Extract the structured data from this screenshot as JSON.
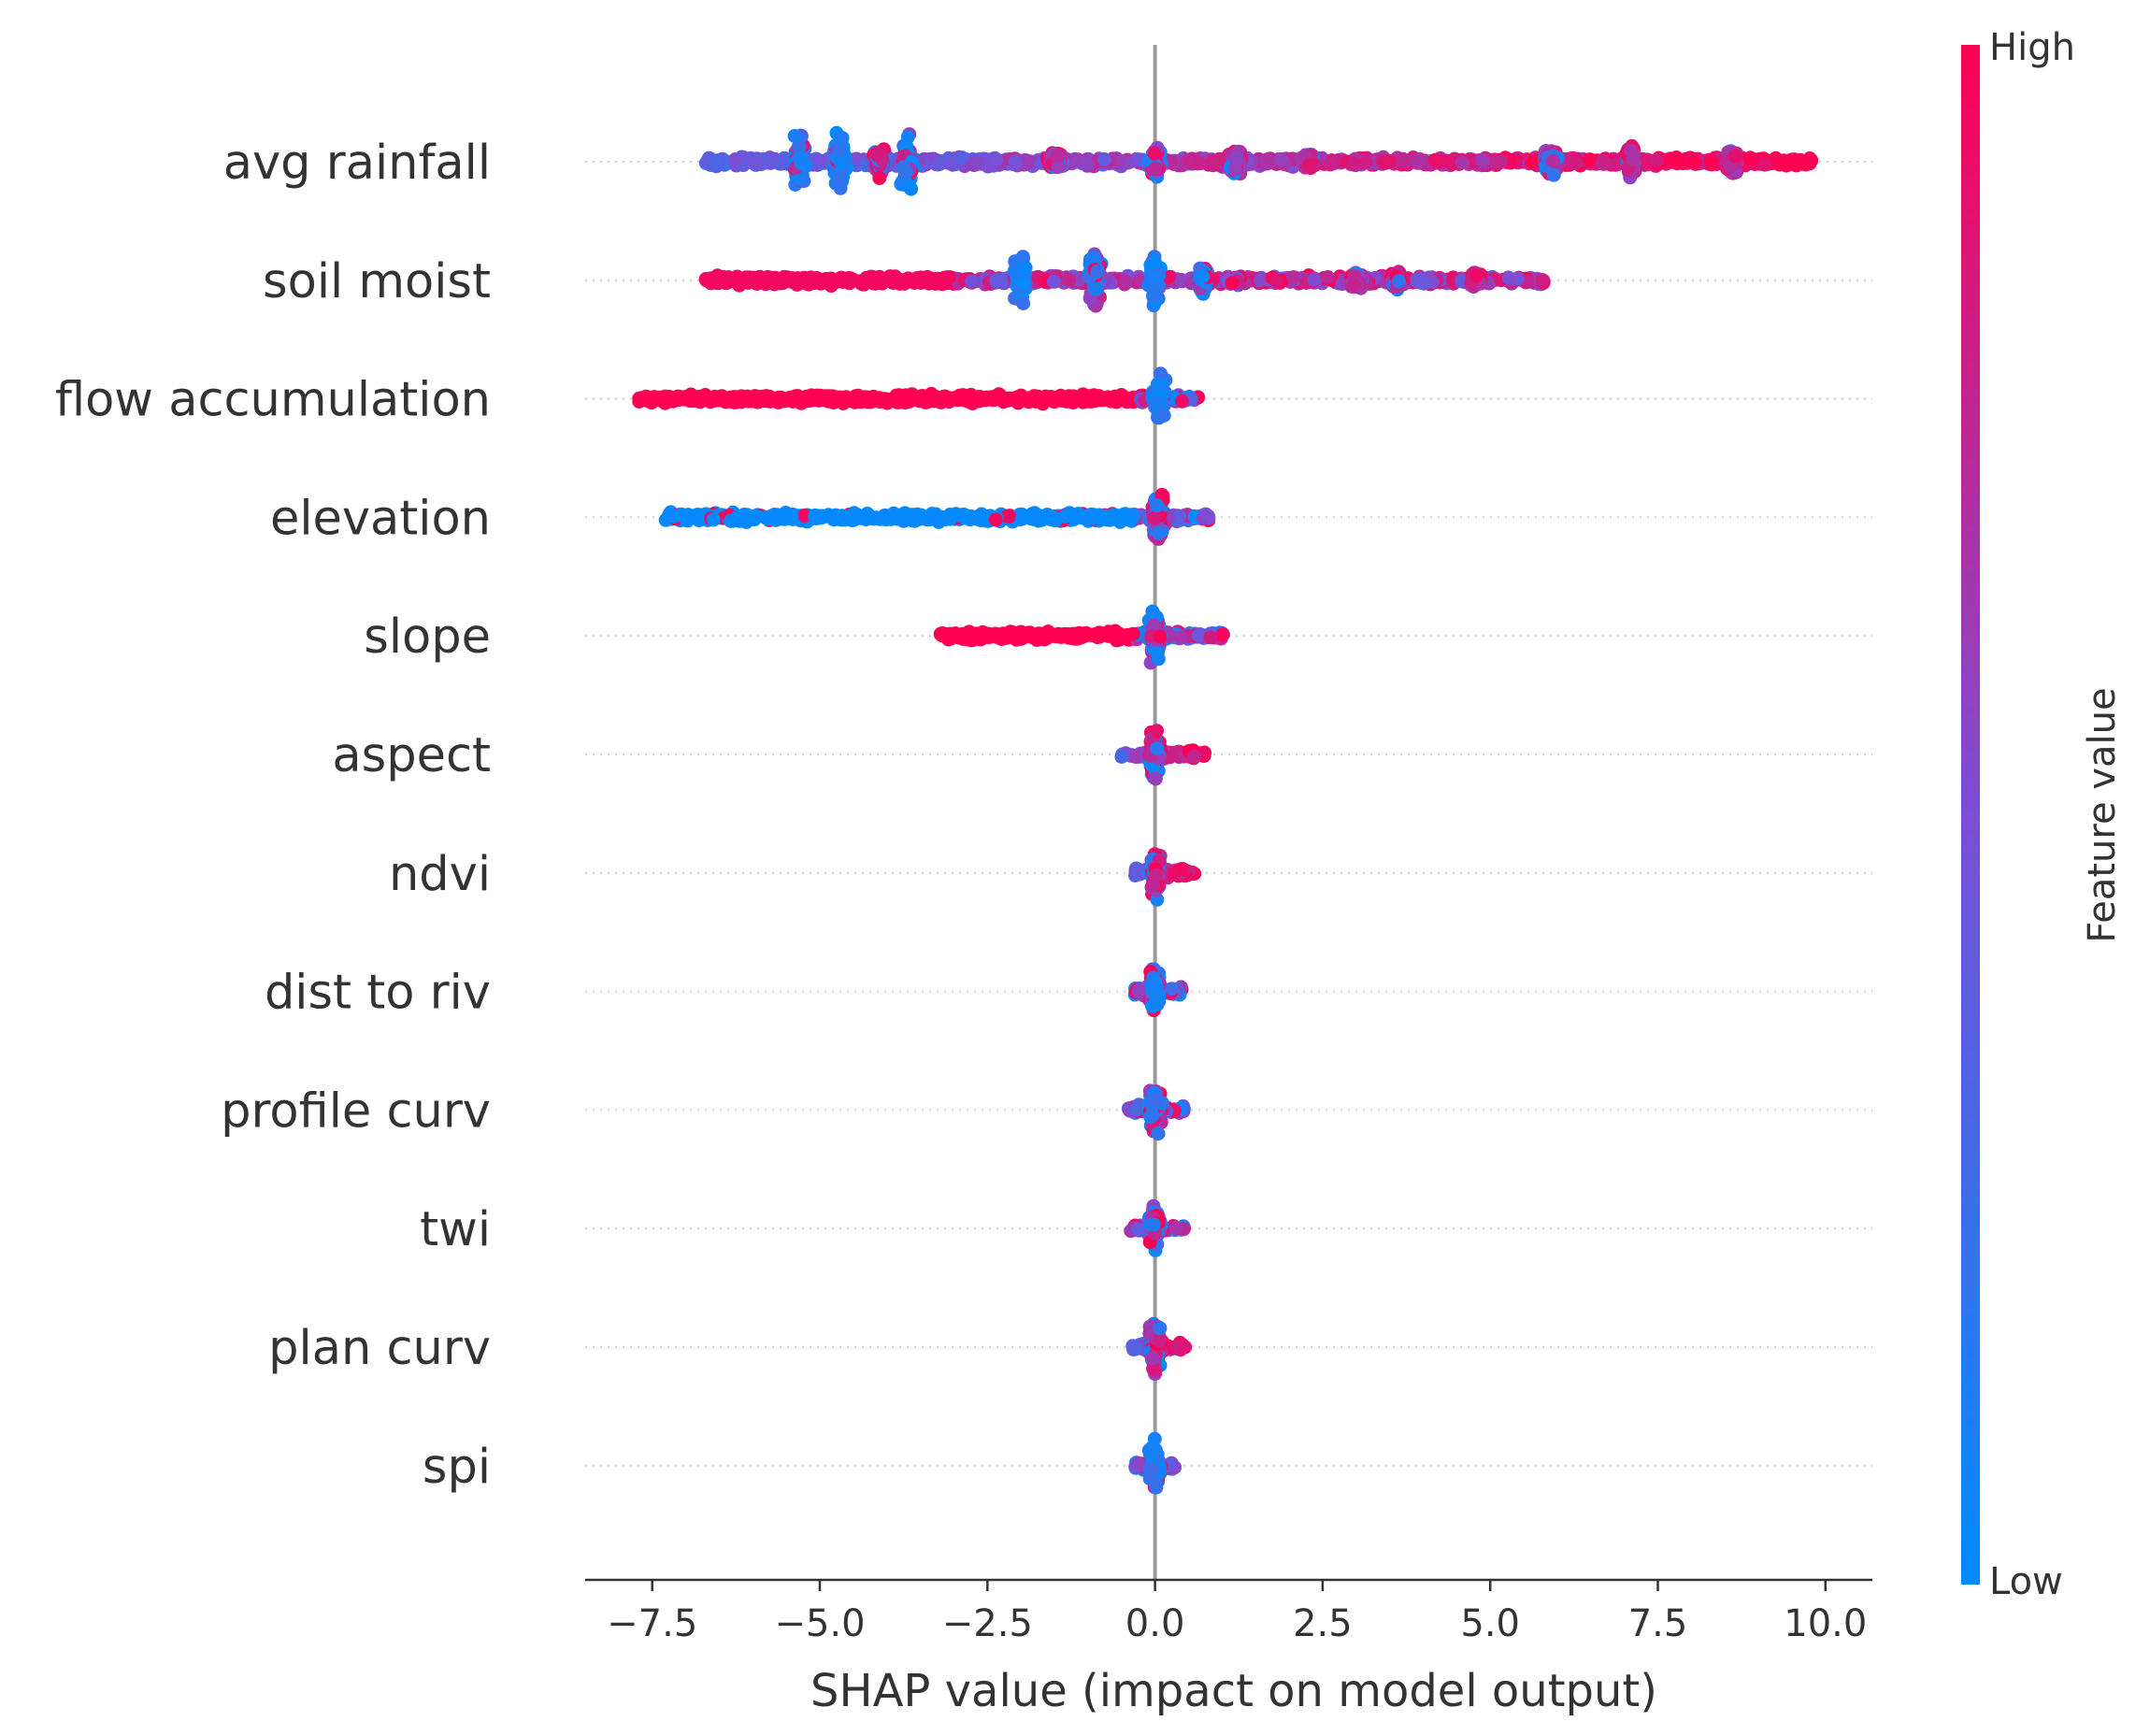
{
  "chart_data": {
    "type": "scatter",
    "subtype": "shap-beeswarm",
    "title": "",
    "xlabel": "SHAP value (impact on model output)",
    "ylabel": "",
    "xlim": [
      -8.5,
      10.7
    ],
    "xticks": [
      -7.5,
      -5.0,
      -2.5,
      0.0,
      2.5,
      5.0,
      7.5,
      10.0
    ],
    "xtick_labels": [
      "−7.5",
      "−5.0",
      "−2.5",
      "0.0",
      "2.5",
      "5.0",
      "7.5",
      "10.0"
    ],
    "zero_line": 0.0,
    "grid": false,
    "colors": {
      "low": "#008bfb",
      "high": "#ff0052",
      "zero_line": "#999999",
      "dotted_guides": "#cccccc"
    },
    "colorbar": {
      "title": "Feature value",
      "low_label": "Low",
      "high_label": "High"
    },
    "features": [
      {
        "name": "avg rainfall",
        "shap_min": -6.7,
        "shap_max": 9.8,
        "clusters": [
          {
            "x": -5.3,
            "spread": 0.9,
            "low_frac": 0.9
          },
          {
            "x": -4.7,
            "spread": 0.9,
            "low_frac": 0.85
          },
          {
            "x": -4.1,
            "spread": 0.6,
            "low_frac": 0.6
          },
          {
            "x": -3.7,
            "spread": 0.8,
            "low_frac": 0.8
          },
          {
            "x": -1.5,
            "spread": 0.3,
            "low_frac": 0.1
          },
          {
            "x": 0.0,
            "spread": 0.45,
            "low_frac": 0.5
          },
          {
            "x": 1.2,
            "spread": 0.4,
            "low_frac": 0.15
          },
          {
            "x": 2.3,
            "spread": 0.3,
            "low_frac": 0.1
          },
          {
            "x": 5.9,
            "spread": 0.45,
            "low_frac": 0.4
          },
          {
            "x": 7.1,
            "spread": 0.6,
            "low_frac": 0.05
          },
          {
            "x": 8.6,
            "spread": 0.45,
            "low_frac": 0.05
          }
        ],
        "trend": "high"
      },
      {
        "name": "soil moist",
        "shap_min": -6.7,
        "shap_max": 5.8,
        "clusters": [
          {
            "x": -2.0,
            "spread": 0.8,
            "low_frac": 0.95
          },
          {
            "x": -0.9,
            "spread": 0.9,
            "low_frac": 0.6
          },
          {
            "x": 0.0,
            "spread": 0.8,
            "low_frac": 0.8
          },
          {
            "x": 0.7,
            "spread": 0.45,
            "low_frac": 0.5
          },
          {
            "x": 3.0,
            "spread": 0.3,
            "low_frac": 0.2
          },
          {
            "x": 3.6,
            "spread": 0.3,
            "low_frac": 0.1
          },
          {
            "x": 4.8,
            "spread": 0.25,
            "low_frac": 0.05
          }
        ],
        "trend": "mixed-u"
      },
      {
        "name": "flow accumulation",
        "shap_min": -7.7,
        "shap_max": 0.65,
        "clusters": [
          {
            "x": 0.05,
            "spread": 0.8,
            "low_frac": 0.95
          }
        ],
        "trend": "low"
      },
      {
        "name": "elevation",
        "shap_min": -7.3,
        "shap_max": 0.8,
        "clusters": [
          {
            "x": 0.05,
            "spread": 0.8,
            "low_frac": 0.4
          }
        ],
        "trend": "low"
      },
      {
        "name": "slope",
        "shap_min": -3.2,
        "shap_max": 1.05,
        "clusters": [
          {
            "x": 0.0,
            "spread": 0.8,
            "low_frac": 0.5
          }
        ],
        "trend": "high-left"
      },
      {
        "name": "aspect",
        "shap_min": -0.5,
        "shap_max": 0.75,
        "clusters": [
          {
            "x": 0.0,
            "spread": 0.8,
            "low_frac": 0.3
          }
        ],
        "trend": "high"
      },
      {
        "name": "ndvi",
        "shap_min": -0.3,
        "shap_max": 0.6,
        "clusters": [
          {
            "x": 0.0,
            "spread": 0.8,
            "low_frac": 0.3
          }
        ],
        "trend": "high"
      },
      {
        "name": "dist to riv",
        "shap_min": -0.3,
        "shap_max": 0.4,
        "clusters": [
          {
            "x": 0.0,
            "spread": 0.8,
            "low_frac": 0.8
          }
        ],
        "trend": "low"
      },
      {
        "name": "profile curv",
        "shap_min": -0.4,
        "shap_max": 0.45,
        "clusters": [
          {
            "x": 0.0,
            "spread": 0.8,
            "low_frac": 0.6
          }
        ],
        "trend": "mixed"
      },
      {
        "name": "twi",
        "shap_min": -0.4,
        "shap_max": 0.45,
        "clusters": [
          {
            "x": 0.0,
            "spread": 0.8,
            "low_frac": 0.5
          }
        ],
        "trend": "mixed"
      },
      {
        "name": "plan curv",
        "shap_min": -0.35,
        "shap_max": 0.45,
        "clusters": [
          {
            "x": 0.0,
            "spread": 0.8,
            "low_frac": 0.3
          }
        ],
        "trend": "high"
      },
      {
        "name": "spi",
        "shap_min": -0.3,
        "shap_max": 0.3,
        "clusters": [
          {
            "x": 0.0,
            "spread": 0.8,
            "low_frac": 0.95
          }
        ],
        "trend": "low"
      }
    ]
  }
}
